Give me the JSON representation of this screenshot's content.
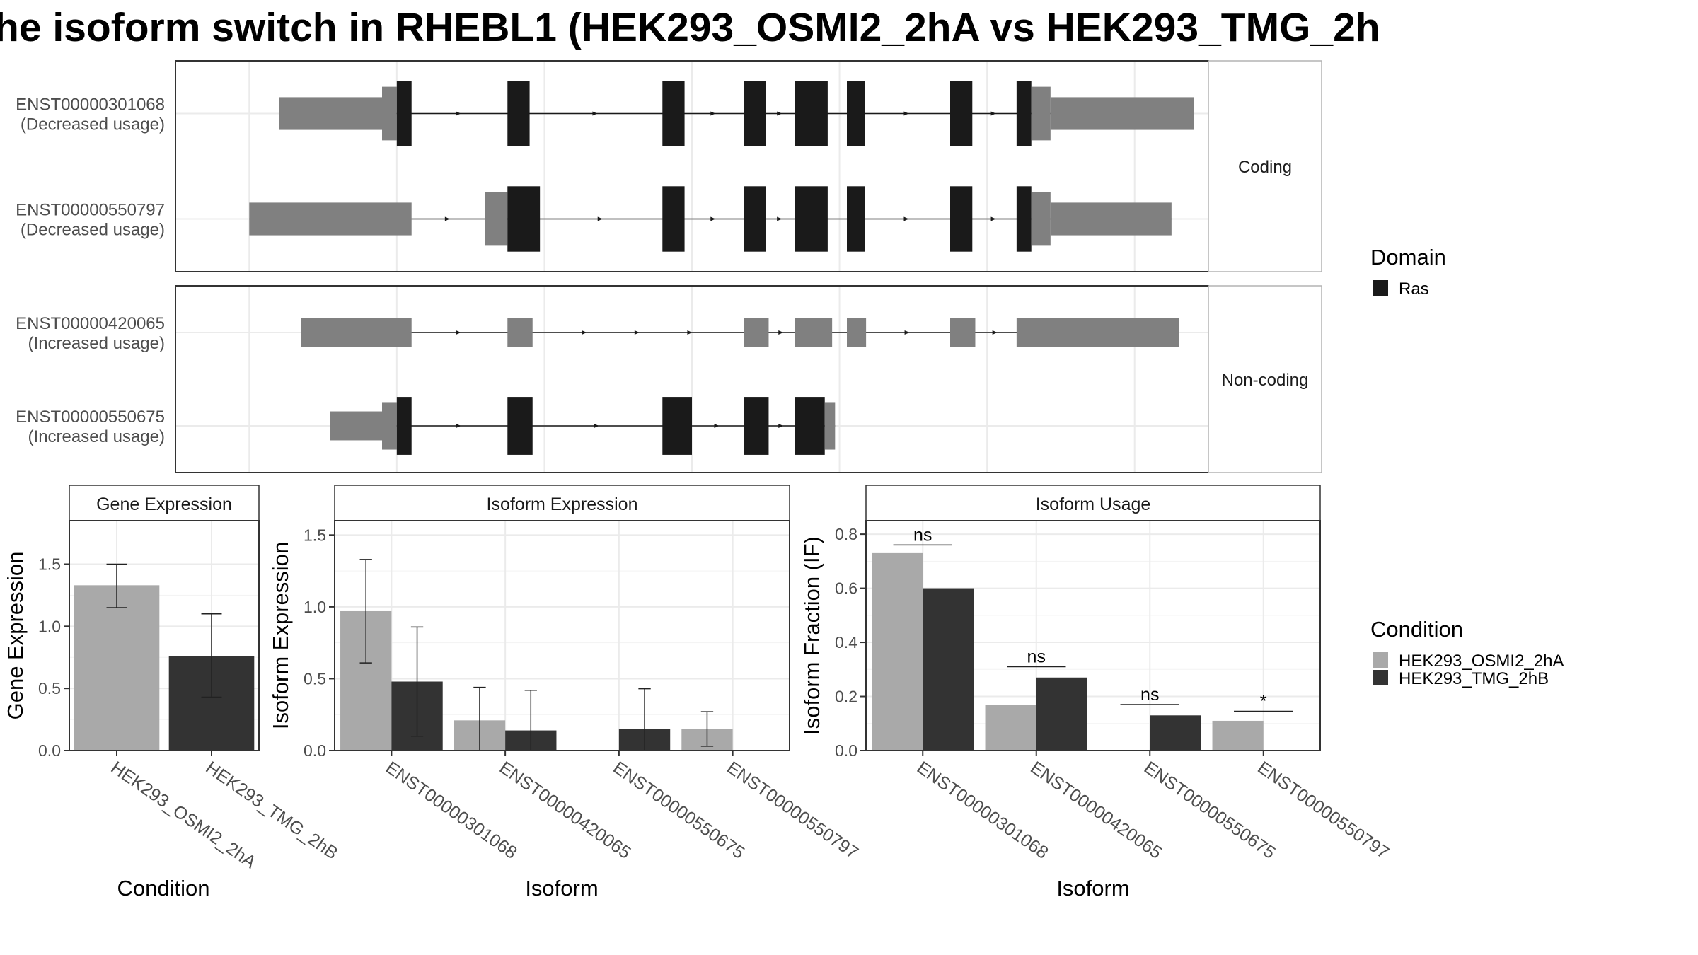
{
  "title": "he isoform switch in RHEBL1 (HEK293_OSMI2_2hA vs HEK293_TMG_2h",
  "colors": {
    "cond1": "#a9a9a9",
    "cond2": "#333333",
    "utr": "#808080",
    "domain": "#1a1a1a",
    "grid": "#ebebeb",
    "strip_bg": "#ffffff",
    "panel_border": "#333333"
  },
  "transcript_plot": {
    "facets": [
      {
        "label": "Coding",
        "transcripts": [
          {
            "id": "ENST00000301068",
            "usage": "(Decreased usage)",
            "span": [
              2.2,
              8.4
            ],
            "exons": [
              {
                "s": 2.2,
                "e": 2.9,
                "type": "utr"
              },
              {
                "s": 2.9,
                "e": 3.0,
                "type": "cds"
              },
              {
                "s": 3.0,
                "e": 3.1,
                "type": "domain"
              },
              {
                "s": 3.75,
                "e": 3.9,
                "type": "domain"
              },
              {
                "s": 4.8,
                "e": 4.95,
                "type": "domain"
              },
              {
                "s": 5.35,
                "e": 5.5,
                "type": "domain"
              },
              {
                "s": 5.7,
                "e": 5.92,
                "type": "domain"
              },
              {
                "s": 6.05,
                "e": 6.17,
                "type": "domain"
              },
              {
                "s": 6.75,
                "e": 6.9,
                "type": "domain"
              },
              {
                "s": 7.2,
                "e": 7.3,
                "type": "domain"
              },
              {
                "s": 7.3,
                "e": 7.43,
                "type": "cds"
              },
              {
                "s": 7.43,
                "e": 8.4,
                "type": "utr"
              }
            ]
          },
          {
            "id": "ENST00000550797",
            "usage": "(Decreased usage)",
            "span": [
              2.0,
              8.25
            ],
            "exons": [
              {
                "s": 2.0,
                "e": 3.1,
                "type": "utr"
              },
              {
                "s": 3.6,
                "e": 3.75,
                "type": "cds"
              },
              {
                "s": 3.75,
                "e": 3.97,
                "type": "domain"
              },
              {
                "s": 4.8,
                "e": 4.95,
                "type": "domain"
              },
              {
                "s": 5.35,
                "e": 5.5,
                "type": "domain"
              },
              {
                "s": 5.7,
                "e": 5.92,
                "type": "domain"
              },
              {
                "s": 6.05,
                "e": 6.17,
                "type": "domain"
              },
              {
                "s": 6.75,
                "e": 6.9,
                "type": "domain"
              },
              {
                "s": 7.2,
                "e": 7.3,
                "type": "domain"
              },
              {
                "s": 7.3,
                "e": 7.43,
                "type": "cds"
              },
              {
                "s": 7.43,
                "e": 8.25,
                "type": "utr"
              }
            ]
          }
        ]
      },
      {
        "label": "Non-coding",
        "transcripts": [
          {
            "id": "ENST00000420065",
            "usage": "(Increased usage)",
            "span": [
              2.35,
              8.3
            ],
            "exons": [
              {
                "s": 2.35,
                "e": 3.1,
                "type": "utr"
              },
              {
                "s": 3.75,
                "e": 3.92,
                "type": "utr"
              },
              {
                "s": 5.35,
                "e": 5.52,
                "type": "utr"
              },
              {
                "s": 5.7,
                "e": 5.95,
                "type": "utr"
              },
              {
                "s": 6.05,
                "e": 6.18,
                "type": "utr"
              },
              {
                "s": 6.75,
                "e": 6.92,
                "type": "utr"
              },
              {
                "s": 7.2,
                "e": 8.3,
                "type": "utr"
              }
            ]
          },
          {
            "id": "ENST00000550675",
            "usage": "(Increased usage)",
            "span": [
              2.55,
              5.97
            ],
            "exons": [
              {
                "s": 2.55,
                "e": 2.9,
                "type": "utr"
              },
              {
                "s": 2.9,
                "e": 3.0,
                "type": "cds"
              },
              {
                "s": 3.0,
                "e": 3.1,
                "type": "domain"
              },
              {
                "s": 3.75,
                "e": 3.92,
                "type": "domain"
              },
              {
                "s": 4.8,
                "e": 5.0,
                "type": "domain"
              },
              {
                "s": 5.35,
                "e": 5.52,
                "type": "domain"
              },
              {
                "s": 5.7,
                "e": 5.9,
                "type": "domain"
              },
              {
                "s": 5.9,
                "e": 5.97,
                "type": "cds"
              }
            ]
          }
        ]
      }
    ]
  },
  "legend_domain": {
    "title": "Domain",
    "items": [
      {
        "label": "Ras",
        "color": "#1a1a1a"
      }
    ]
  },
  "legend_condition": {
    "title": "Condition",
    "items": [
      {
        "label": "HEK293_OSMI2_2hA",
        "color": "#a9a9a9"
      },
      {
        "label": "HEK293_TMG_2hB",
        "color": "#333333"
      }
    ]
  },
  "chart_data": [
    {
      "type": "bar",
      "title": "Gene Expression",
      "xlabel": "Condition",
      "ylabel": "Gene Expression",
      "ylim": [
        0,
        1.85
      ],
      "yticks": [
        "0.0",
        "0.5",
        "1.0",
        "1.5"
      ],
      "categories": [
        "HEK293_OSMI2_2hA",
        "HEK293_TMG_2hB"
      ],
      "series": [
        {
          "name": "HEK293_OSMI2_2hA",
          "values": [
            1.33,
            null
          ],
          "err_low": [
            1.15,
            null
          ],
          "err_high": [
            1.5,
            null
          ]
        },
        {
          "name": "HEK293_TMG_2hB",
          "values": [
            null,
            0.76
          ],
          "err_low": [
            null,
            0.43
          ],
          "err_high": [
            null,
            1.1
          ]
        }
      ]
    },
    {
      "type": "bar",
      "title": "Isoform Expression",
      "xlabel": "Isoform",
      "ylabel": "Isoform Expression",
      "ylim": [
        0,
        1.6
      ],
      "yticks": [
        "0.0",
        "0.5",
        "1.0",
        "1.5"
      ],
      "categories": [
        "ENST00000301068",
        "ENST00000420065",
        "ENST00000550675",
        "ENST00000550797"
      ],
      "series": [
        {
          "name": "HEK293_OSMI2_2hA",
          "values": [
            0.97,
            0.21,
            0.0,
            0.15
          ],
          "err_low": [
            0.61,
            0.0,
            0.0,
            0.03
          ],
          "err_high": [
            1.33,
            0.44,
            0.0,
            0.27
          ]
        },
        {
          "name": "HEK293_TMG_2hB",
          "values": [
            0.48,
            0.14,
            0.15,
            0.0
          ],
          "err_low": [
            0.1,
            0.0,
            0.0,
            0.0
          ],
          "err_high": [
            0.86,
            0.42,
            0.43,
            0.0
          ]
        }
      ]
    },
    {
      "type": "bar",
      "title": "Isoform Usage",
      "xlabel": "Isoform",
      "ylabel": "Isoform Fraction (IF)",
      "ylim": [
        0,
        0.85
      ],
      "yticks": [
        "0.0",
        "0.2",
        "0.4",
        "0.6",
        "0.8"
      ],
      "categories": [
        "ENST00000301068",
        "ENST00000420065",
        "ENST00000550675",
        "ENST00000550797"
      ],
      "series": [
        {
          "name": "HEK293_OSMI2_2hA",
          "values": [
            0.73,
            0.17,
            0.0,
            0.11
          ]
        },
        {
          "name": "HEK293_TMG_2hB",
          "values": [
            0.6,
            0.27,
            0.13,
            0.0
          ]
        }
      ],
      "significance": [
        {
          "label": "ns",
          "y": 0.76
        },
        {
          "label": "ns",
          "y": 0.31
        },
        {
          "label": "ns",
          "y": 0.17
        },
        {
          "label": "*",
          "y": 0.145
        }
      ]
    }
  ]
}
